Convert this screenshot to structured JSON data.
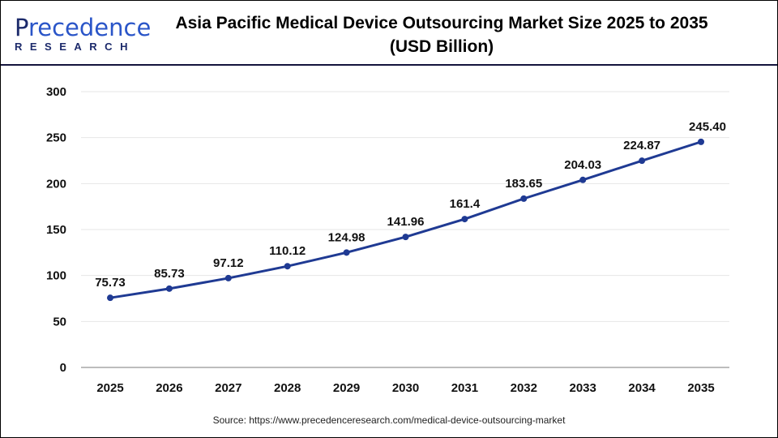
{
  "logo": {
    "main_first": "P",
    "main_rest": "recedence",
    "sub": "RESEARCH"
  },
  "title_line1": "Asia Pacific Medical Device Outsourcing Market Size 2025 to 2035",
  "title_line2": "(USD Billion)",
  "source": "Source: https://www.precedenceresearch.com/medical-device-outsourcing-market",
  "colors": {
    "line": "#1f3a93",
    "grid": "#e6e6e6",
    "axis": "#bdbdbd"
  },
  "chart_data": {
    "type": "line",
    "title": "Asia Pacific Medical Device Outsourcing Market Size 2025 to 2035 (USD Billion)",
    "xlabel": "",
    "ylabel": "",
    "categories": [
      "2025",
      "2026",
      "2027",
      "2028",
      "2029",
      "2030",
      "2031",
      "2032",
      "2033",
      "2034",
      "2035"
    ],
    "values": [
      75.73,
      85.73,
      97.12,
      110.12,
      124.98,
      141.96,
      161.4,
      183.65,
      204.03,
      224.87,
      245.4
    ],
    "data_labels": [
      "75.73",
      "85.73",
      "97.12",
      "110.12",
      "124.98",
      "141.96",
      "161.4",
      "183.65",
      "204.03",
      "224.87",
      "245.40"
    ],
    "ylim": [
      0,
      300
    ],
    "yticks": [
      "0",
      "50",
      "100",
      "150",
      "200",
      "250",
      "300"
    ],
    "grid": true
  }
}
